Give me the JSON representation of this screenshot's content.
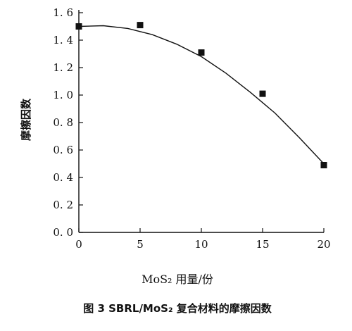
{
  "chart_data": {
    "type": "scatter",
    "title": "图 3   SBRL/MoS₂ 复合材料的摩擦因数",
    "xlabel": "MoS₂ 用量/份",
    "ylabel": "摩擦因数",
    "xlim": [
      0,
      20
    ],
    "ylim": [
      0.0,
      1.6
    ],
    "x_ticks": [
      0,
      5,
      10,
      15,
      20
    ],
    "y_ticks": [
      0.0,
      0.2,
      0.4,
      0.6,
      0.8,
      1.0,
      1.2,
      1.4,
      1.6
    ],
    "x_tick_labels": [
      "0",
      "5",
      "10",
      "15",
      "20"
    ],
    "y_tick_labels": [
      "0. 0",
      "0. 2",
      "0. 4",
      "0. 6",
      "0. 8",
      "1. 0",
      "1. 2",
      "1. 4",
      "1. 6"
    ],
    "grid": false,
    "series": [
      {
        "marker": "square",
        "x": [
          0,
          5,
          10,
          15,
          20
        ],
        "y": [
          1.5,
          1.51,
          1.31,
          1.01,
          0.49
        ]
      }
    ],
    "fit_curve": {
      "x": [
        0,
        2,
        4,
        6,
        8,
        10,
        12,
        14,
        16,
        18,
        20
      ],
      "y": [
        1.5,
        1.505,
        1.485,
        1.44,
        1.37,
        1.28,
        1.16,
        1.02,
        0.87,
        0.69,
        0.5
      ]
    },
    "colors": {
      "ink": "#111111",
      "background": "#ffffff"
    }
  }
}
